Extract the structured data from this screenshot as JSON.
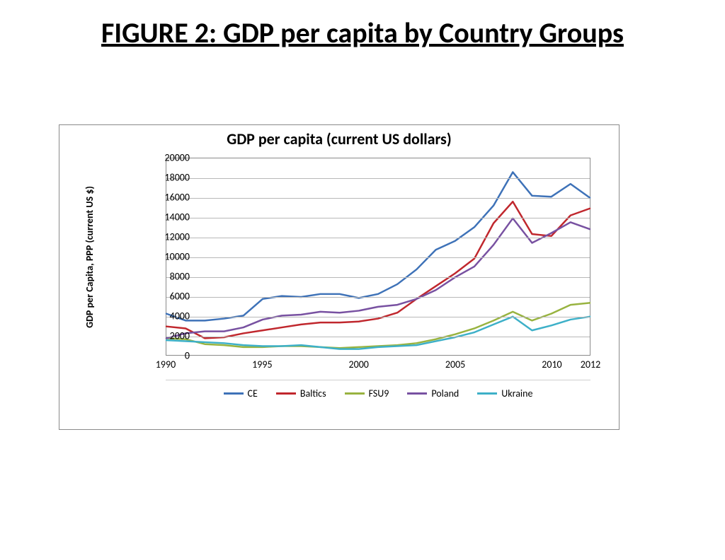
{
  "page": {
    "title": "FIGURE 2: GDP per capita by Country Groups"
  },
  "chart": {
    "type": "line",
    "title": "GDP per capita (current US dollars)",
    "title_fontsize": 22,
    "title_weight": "bold",
    "ylabel": "GDP per Capita, PPP (current US $)",
    "ylabel_fontsize": 14,
    "ylabel_weight": "bold",
    "background_color": "#ffffff",
    "border_color": "#8a8a8a",
    "grid_color": "#b8b8b8",
    "tick_fontsize": 14,
    "line_width": 2.5,
    "x": {
      "min": 1990,
      "max": 2012,
      "tick_labels": [
        {
          "x": 1990,
          "label": "1990"
        },
        {
          "x": 1995,
          "label": "1995"
        },
        {
          "x": 2000,
          "label": "2000"
        },
        {
          "x": 2005,
          "label": "2005"
        },
        {
          "x": 2010,
          "label": "2010"
        },
        {
          "x": 2012,
          "label": "2012"
        }
      ]
    },
    "y": {
      "min": 0,
      "max": 20000,
      "ticks": [
        0,
        2000,
        4000,
        6000,
        8000,
        10000,
        12000,
        14000,
        16000,
        18000,
        20000
      ]
    },
    "series": [
      {
        "name": "CE",
        "color": "#3e72b8",
        "years": [
          1990,
          1991,
          1992,
          1993,
          1994,
          1995,
          1996,
          1997,
          1998,
          1999,
          2000,
          2001,
          2002,
          2003,
          2004,
          2005,
          2006,
          2007,
          2008,
          2009,
          2010,
          2011,
          2012
        ],
        "values": [
          4200,
          3500,
          3500,
          3700,
          4000,
          5700,
          6000,
          5900,
          6200,
          6200,
          5800,
          6200,
          7200,
          8700,
          10700,
          11600,
          13000,
          15200,
          18600,
          16200,
          16100,
          17400,
          16000
        ]
      },
      {
        "name": "Baltics",
        "color": "#c0272d",
        "years": [
          1990,
          1991,
          1992,
          1993,
          1994,
          1995,
          1996,
          1997,
          1998,
          1999,
          2000,
          2001,
          2002,
          2003,
          2004,
          2005,
          2006,
          2007,
          2008,
          2009,
          2010,
          2011,
          2012
        ],
        "values": [
          2900,
          2700,
          1700,
          1800,
          2200,
          2500,
          2800,
          3100,
          3300,
          3300,
          3400,
          3700,
          4300,
          5700,
          7000,
          8300,
          9800,
          13400,
          15600,
          12300,
          12100,
          14200,
          14900
        ]
      },
      {
        "name": "FSU9",
        "color": "#98b340",
        "years": [
          1990,
          1991,
          1992,
          1993,
          1994,
          1995,
          1996,
          1997,
          1998,
          1999,
          2000,
          2001,
          2002,
          2003,
          2004,
          2005,
          2006,
          2007,
          2008,
          2009,
          2010,
          2011,
          2012
        ],
        "values": [
          1700,
          1600,
          1100,
          1000,
          800,
          800,
          900,
          900,
          800,
          700,
          800,
          900,
          1000,
          1200,
          1600,
          2100,
          2700,
          3500,
          4400,
          3500,
          4200,
          5100,
          5300
        ]
      },
      {
        "name": "Poland",
        "color": "#7851a1",
        "years": [
          1990,
          1991,
          1992,
          1993,
          1994,
          1995,
          1996,
          1997,
          1998,
          1999,
          2000,
          2001,
          2002,
          2003,
          2004,
          2005,
          2006,
          2007,
          2008,
          2009,
          2010,
          2011,
          2012
        ],
        "values": [
          1700,
          2200,
          2400,
          2400,
          2800,
          3600,
          4000,
          4100,
          4400,
          4300,
          4500,
          4900,
          5100,
          5700,
          6600,
          7900,
          9000,
          11200,
          13900,
          11400,
          12400,
          13500,
          12800
        ]
      },
      {
        "name": "Ukraine",
        "color": "#3db0c8",
        "years": [
          1990,
          1991,
          1992,
          1993,
          1994,
          1995,
          1996,
          1997,
          1998,
          1999,
          2000,
          2001,
          2002,
          2003,
          2004,
          2005,
          2006,
          2007,
          2008,
          2009,
          2010,
          2011,
          2012
        ],
        "values": [
          1500,
          1400,
          1300,
          1200,
          1000,
          900,
          900,
          1000,
          800,
          600,
          600,
          800,
          900,
          1000,
          1400,
          1800,
          2300,
          3100,
          3900,
          2500,
          3000,
          3600,
          3900
        ]
      }
    ],
    "legend": {
      "position": "bottom",
      "items": [
        "CE",
        "Baltics",
        "FSU9",
        "Poland",
        "Ukraine"
      ]
    }
  }
}
